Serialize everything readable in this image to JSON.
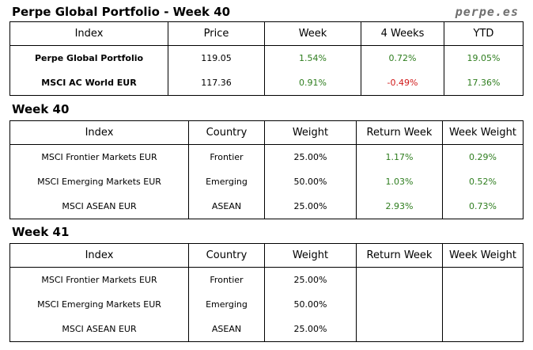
{
  "header": {
    "title": "Perpe Global Portfolio - Week 40",
    "brand": "perpe.es"
  },
  "summary": {
    "columns": [
      "Index",
      "Price",
      "Week",
      "4 Weeks",
      "YTD"
    ],
    "rows": [
      {
        "index": "Perpe Global Portfolio",
        "price": "119.05",
        "week": "1.54%",
        "weeks4": "0.72%",
        "ytd": "19.05%"
      },
      {
        "index": "MSCI AC World EUR",
        "price": "117.36",
        "week": "0.91%",
        "weeks4": "-0.49%",
        "ytd": "17.36%"
      }
    ]
  },
  "week40": {
    "title": "Week 40",
    "columns": [
      "Index",
      "Country",
      "Weight",
      "Return Week",
      "Week Weight"
    ],
    "rows": [
      {
        "index": "MSCI Frontier Markets EUR",
        "country": "Frontier",
        "weight": "25.00%",
        "return": "1.17%",
        "week_weight": "0.29%"
      },
      {
        "index": "MSCI Emerging Markets EUR",
        "country": "Emerging",
        "weight": "50.00%",
        "return": "1.03%",
        "week_weight": "0.52%"
      },
      {
        "index": "MSCI ASEAN EUR",
        "country": "ASEAN",
        "weight": "25.00%",
        "return": "2.93%",
        "week_weight": "0.73%"
      }
    ]
  },
  "week41": {
    "title": "Week 41",
    "columns": [
      "Index",
      "Country",
      "Weight",
      "Return Week",
      "Week Weight"
    ],
    "rows": [
      {
        "index": "MSCI Frontier Markets EUR",
        "country": "Frontier",
        "weight": "25.00%",
        "return": "",
        "week_weight": ""
      },
      {
        "index": "MSCI Emerging Markets EUR",
        "country": "Emerging",
        "weight": "50.00%",
        "return": "",
        "week_weight": ""
      },
      {
        "index": "MSCI ASEAN EUR",
        "country": "ASEAN",
        "weight": "25.00%",
        "return": "",
        "week_weight": ""
      }
    ]
  },
  "colors": {
    "positive": "#2e7d1e",
    "negative": "#d01818"
  }
}
